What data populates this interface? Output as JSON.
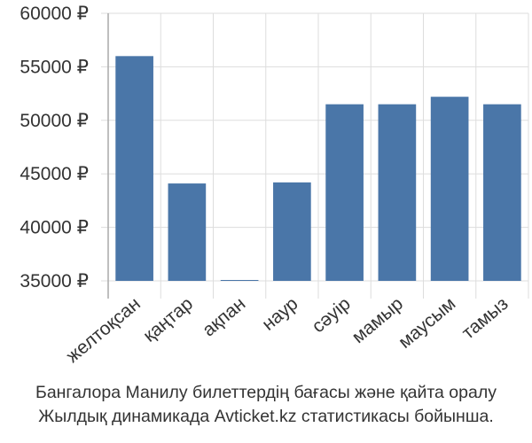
{
  "chart_data": {
    "type": "bar",
    "categories": [
      "желтоқсан",
      "қаңтар",
      "ақпан",
      "наур",
      "сәуір",
      "мамыр",
      "маусым",
      "тамыз"
    ],
    "values": [
      56000,
      44100,
      35000,
      44200,
      51500,
      51500,
      52200,
      51500
    ],
    "ylim": [
      35000,
      60000
    ],
    "yticks": [
      35000,
      40000,
      45000,
      50000,
      55000,
      60000
    ],
    "ytick_labels": [
      "35000 ₽",
      "40000 ₽",
      "45000 ₽",
      "50000 ₽",
      "55000 ₽",
      "60000 ₽"
    ],
    "grid": true,
    "bar_color": "#4a76a8",
    "grid_color": "#dddddd",
    "axis_color": "#aaaaaa"
  },
  "caption": {
    "line1": "Бангалора Манилу билеттердің бағасы және қайта оралу",
    "line2": "Жылдық динамикада Avticket.kz статистикасы бойынша."
  }
}
